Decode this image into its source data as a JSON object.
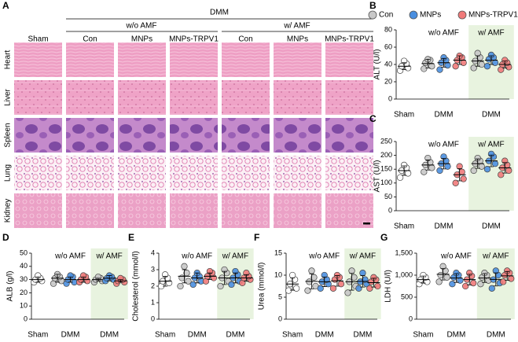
{
  "panel_a": {
    "label": "A",
    "top_header": "DMM",
    "subheaders": [
      "w/o AMF",
      "w/ AMF"
    ],
    "columns": [
      "Sham",
      "Con",
      "MNPs",
      "MNPs-TRPV1",
      "Con",
      "MNPs",
      "MNPs-TRPV1"
    ],
    "rows": [
      "Heart",
      "Liver",
      "Spleen",
      "Lung",
      "Kidney"
    ]
  },
  "legend": [
    {
      "name": "Con",
      "color": "#c8c8c8"
    },
    {
      "name": "MNPs",
      "color": "#4a8fe0"
    },
    {
      "name": "MNPs-TRPV1",
      "color": "#f07a7a"
    }
  ],
  "chart_data": [
    {
      "type": "dot",
      "label": "B",
      "ylabel": "ALT (U/l)",
      "ylim": [
        0,
        80
      ],
      "yticks": [
        0,
        20,
        40,
        60,
        80
      ],
      "x_labels": [
        "Sham",
        "DMM",
        "DMM"
      ],
      "annotations": [
        "w/o AMF",
        "w/ AMF"
      ],
      "shade_color": "#e8f3df",
      "colors": [
        "#ffffff",
        "#c8c8c8",
        "#4a8fe0",
        "#f07a7a",
        "#c8c8c8",
        "#4a8fe0",
        "#f07a7a"
      ],
      "groups": [
        {
          "values": [
            33,
            36,
            38,
            41,
            44
          ],
          "mean": 38,
          "sd": 4
        },
        {
          "values": [
            35,
            38,
            42,
            45,
            46
          ],
          "mean": 41,
          "sd": 5
        },
        {
          "values": [
            34,
            39,
            42,
            45,
            48
          ],
          "mean": 42,
          "sd": 5
        },
        {
          "values": [
            38,
            42,
            45,
            48,
            50
          ],
          "mean": 45,
          "sd": 5
        },
        {
          "values": [
            36,
            40,
            44,
            48,
            53
          ],
          "mean": 44,
          "sd": 6
        },
        {
          "values": [
            38,
            42,
            46,
            48,
            51
          ],
          "mean": 45,
          "sd": 5
        },
        {
          "values": [
            34,
            37,
            40,
            42,
            45
          ],
          "mean": 40,
          "sd": 4
        }
      ]
    },
    {
      "type": "dot",
      "label": "C",
      "ylabel": "AST (U/l)",
      "ylim": [
        0,
        250
      ],
      "yticks": [
        0,
        50,
        100,
        150,
        200,
        250
      ],
      "x_labels": [
        "Sham",
        "DMM",
        "DMM"
      ],
      "annotations": [
        "w/o AMF",
        "w/ AMF"
      ],
      "shade_color": "#e8f3df",
      "colors": [
        "#ffffff",
        "#c8c8c8",
        "#4a8fe0",
        "#f07a7a",
        "#c8c8c8",
        "#4a8fe0",
        "#f07a7a"
      ],
      "groups": [
        {
          "values": [
            120,
            135,
            145,
            155,
            165
          ],
          "mean": 145,
          "sd": 17
        },
        {
          "values": [
            140,
            155,
            165,
            175,
            190
          ],
          "mean": 165,
          "sd": 18
        },
        {
          "values": [
            145,
            160,
            170,
            180,
            195
          ],
          "mean": 170,
          "sd": 19
        },
        {
          "values": [
            100,
            115,
            130,
            140,
            160
          ],
          "mean": 130,
          "sd": 22
        },
        {
          "values": [
            145,
            160,
            170,
            180,
            190
          ],
          "mean": 170,
          "sd": 17
        },
        {
          "values": [
            150,
            170,
            180,
            195,
            205
          ],
          "mean": 180,
          "sd": 21
        },
        {
          "values": [
            130,
            145,
            155,
            165,
            180
          ],
          "mean": 155,
          "sd": 19
        }
      ]
    },
    {
      "type": "dot",
      "label": "D",
      "ylabel": "ALB (g/l)",
      "ylim": [
        0,
        50
      ],
      "yticks": [
        0,
        10,
        20,
        30,
        40,
        50
      ],
      "x_labels": [
        "Sham",
        "DMM",
        "DMM"
      ],
      "annotations": [
        "w/o AMF",
        "w/ AMF"
      ],
      "shade_color": "#e8f3df",
      "colors": [
        "#ffffff",
        "#c8c8c8",
        "#4a8fe0",
        "#f07a7a",
        "#c8c8c8",
        "#4a8fe0",
        "#f07a7a"
      ],
      "groups": [
        {
          "values": [
            28,
            29,
            30,
            31,
            33
          ],
          "mean": 30,
          "sd": 2
        },
        {
          "values": [
            27,
            29,
            31,
            32,
            34
          ],
          "mean": 31,
          "sd": 3
        },
        {
          "values": [
            27,
            28,
            30,
            32,
            33
          ],
          "mean": 30,
          "sd": 2
        },
        {
          "values": [
            28,
            29,
            30,
            32,
            33
          ],
          "mean": 30,
          "sd": 2
        },
        {
          "values": [
            28,
            29,
            30,
            31,
            32
          ],
          "mean": 30,
          "sd": 1
        },
        {
          "values": [
            29,
            30,
            31,
            32,
            33
          ],
          "mean": 31,
          "sd": 2
        },
        {
          "values": [
            27,
            28,
            29,
            30,
            31
          ],
          "mean": 29,
          "sd": 1
        }
      ]
    },
    {
      "type": "dot",
      "label": "E",
      "ylabel": "Cholesterol (mmol/l)",
      "ylim": [
        0,
        4
      ],
      "yticks": [
        0,
        1,
        2,
        3,
        4
      ],
      "x_labels": [
        "Sham",
        "DMM",
        "DMM"
      ],
      "annotations": [
        "w/o AMF",
        "w/ AMF"
      ],
      "shade_color": "#e8f3df",
      "colors": [
        "#ffffff",
        "#c8c8c8",
        "#4a8fe0",
        "#f07a7a",
        "#c8c8c8",
        "#4a8fe0",
        "#f07a7a"
      ],
      "groups": [
        {
          "values": [
            2.0,
            2.2,
            2.3,
            2.5,
            2.7
          ],
          "mean": 2.3,
          "sd": 0.3
        },
        {
          "values": [
            2.0,
            2.3,
            2.5,
            2.8,
            3.2
          ],
          "mean": 2.6,
          "sd": 0.4
        },
        {
          "values": [
            2.1,
            2.3,
            2.5,
            2.6,
            2.8
          ],
          "mean": 2.5,
          "sd": 0.3
        },
        {
          "values": [
            2.3,
            2.5,
            2.6,
            2.8,
            2.9
          ],
          "mean": 2.6,
          "sd": 0.2
        },
        {
          "values": [
            2.0,
            2.3,
            2.5,
            2.8,
            3.0
          ],
          "mean": 2.5,
          "sd": 0.4
        },
        {
          "values": [
            2.1,
            2.3,
            2.5,
            2.7,
            2.9
          ],
          "mean": 2.5,
          "sd": 0.3
        },
        {
          "values": [
            2.2,
            2.4,
            2.5,
            2.6,
            2.8
          ],
          "mean": 2.5,
          "sd": 0.2
        }
      ]
    },
    {
      "type": "dot",
      "label": "F",
      "ylabel": "Urea (mmol/l)",
      "ylim": [
        0,
        15
      ],
      "yticks": [
        0,
        5,
        10,
        15
      ],
      "x_labels": [
        "Sham",
        "DMM",
        "DMM"
      ],
      "annotations": [
        "w/o AMF",
        "w/ AMF"
      ],
      "shade_color": "#e8f3df",
      "colors": [
        "#ffffff",
        "#c8c8c8",
        "#4a8fe0",
        "#f07a7a",
        "#c8c8c8",
        "#4a8fe0",
        "#f07a7a"
      ],
      "groups": [
        {
          "values": [
            6.5,
            7,
            8,
            9,
            10
          ],
          "mean": 8,
          "sd": 1.4
        },
        {
          "values": [
            6.5,
            7.5,
            8.5,
            9.5,
            11
          ],
          "mean": 8.6,
          "sd": 1.7
        },
        {
          "values": [
            7,
            8,
            8.5,
            9,
            10
          ],
          "mean": 8.5,
          "sd": 1.1
        },
        {
          "values": [
            7,
            8,
            9,
            9.5,
            10
          ],
          "mean": 8.7,
          "sd": 1.2
        },
        {
          "values": [
            6,
            7.5,
            8.5,
            9.5,
            11
          ],
          "mean": 8.5,
          "sd": 1.9
        },
        {
          "values": [
            7,
            8,
            8.5,
            9,
            10.5
          ],
          "mean": 8.6,
          "sd": 1.3
        },
        {
          "values": [
            7,
            7.5,
            8.5,
            9,
            9.5
          ],
          "mean": 8.3,
          "sd": 1
        }
      ]
    },
    {
      "type": "dot",
      "label": "G",
      "ylabel": "LDH (U/l)",
      "ylim": [
        0,
        1500
      ],
      "yticks": [
        0,
        500,
        {
          "value": 1000,
          "label": "1,000"
        },
        {
          "value": 1500,
          "label": "1,500"
        }
      ],
      "x_labels": [
        "Sham",
        "DMM",
        "DMM"
      ],
      "annotations": [
        "w/o AMF",
        "w/ AMF"
      ],
      "shade_color": "#e8f3df",
      "colors": [
        "#ffffff",
        "#c8c8c8",
        "#4a8fe0",
        "#f07a7a",
        "#c8c8c8",
        "#4a8fe0",
        "#f07a7a"
      ],
      "groups": [
        {
          "values": [
            800,
            850,
            900,
            950,
            1000
          ],
          "mean": 900,
          "sd": 80
        },
        {
          "values": [
            850,
            950,
            1000,
            1100,
            1200
          ],
          "mean": 1020,
          "sd": 130
        },
        {
          "values": [
            800,
            880,
            950,
            1000,
            1050
          ],
          "mean": 936,
          "sd": 100
        },
        {
          "values": [
            750,
            820,
            900,
            980,
            1050
          ],
          "mean": 900,
          "sd": 120
        },
        {
          "values": [
            800,
            880,
            950,
            1000,
            1050
          ],
          "mean": 936,
          "sd": 100
        },
        {
          "values": [
            700,
            820,
            900,
            1000,
            1100
          ],
          "mean": 904,
          "sd": 150
        },
        {
          "values": [
            850,
            920,
            1000,
            1050,
            1100
          ],
          "mean": 984,
          "sd": 100
        }
      ]
    }
  ]
}
